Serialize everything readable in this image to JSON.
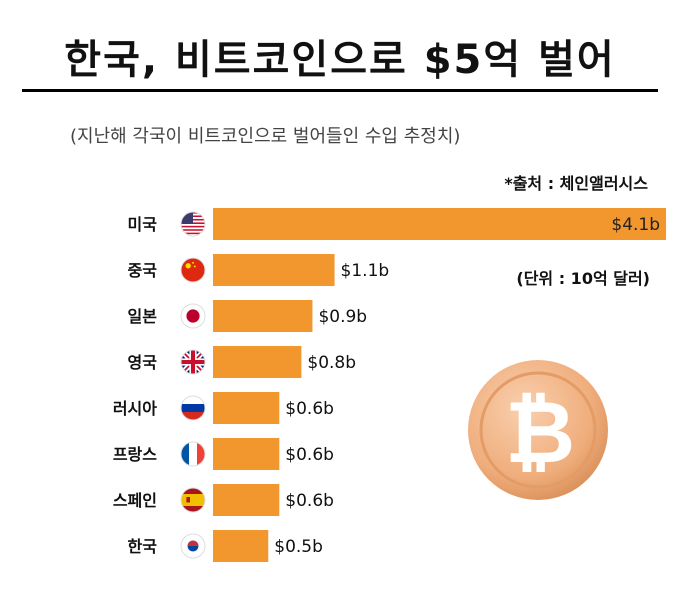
{
  "header": {
    "title": "한국, 비트코인으로 $5억 벌어",
    "subtitle": "(지난해 각국이 비트코인으로 벌어들인 수입 추정치)",
    "source": "*출처 :  체인앨러시스",
    "unit": "(단위 :  10억 달러)"
  },
  "colors": {
    "bar": "#F2962E",
    "coin_face": "#EFAD7B",
    "coin_symbol": "#FFFFFF"
  },
  "chart_data": {
    "type": "bar",
    "orientation": "horizontal",
    "title": "한국, 비트코인으로 $5억 벌어",
    "subtitle": "(지난해 각국이 비트코인으로 벌어들인 수입 추정치)",
    "unit": "(단위 :  10억 달러)",
    "categories": [
      "미국",
      "중국",
      "일본",
      "영국",
      "러시아",
      "프랑스",
      "스페인",
      "한국"
    ],
    "values": [
      4.1,
      1.1,
      0.9,
      0.8,
      0.6,
      0.6,
      0.6,
      0.5
    ],
    "value_labels": [
      "$4.1b",
      "$1.1b",
      "$0.9b",
      "$0.8b",
      "$0.6b",
      "$0.6b",
      "$0.6b",
      "$0.5b"
    ],
    "flags": [
      "us-flag-icon",
      "china-flag-icon",
      "japan-flag-icon",
      "uk-flag-icon",
      "russia-flag-icon",
      "france-flag-icon",
      "spain-flag-icon",
      "korea-flag-icon"
    ],
    "grid": false,
    "legend": "none"
  },
  "decoration": {
    "icon": "bitcoin-coin-icon",
    "symbol": "₿"
  }
}
